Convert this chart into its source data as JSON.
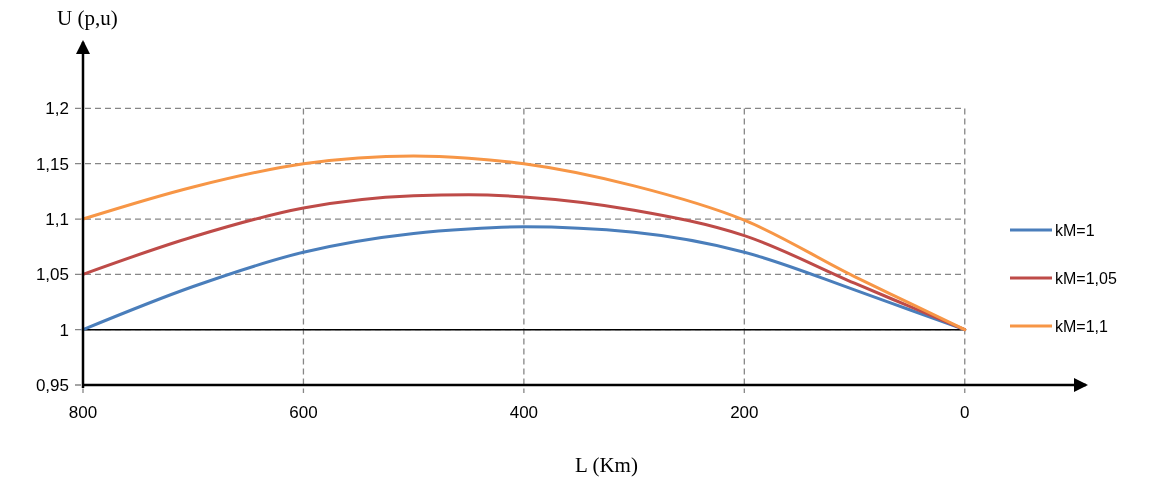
{
  "chart_data": {
    "type": "line",
    "xlabel": "L (Km)",
    "ylabel": "U (p,u)",
    "x": [
      800,
      700,
      600,
      500,
      450,
      400,
      300,
      200,
      100,
      50,
      0
    ],
    "xlim": [
      800,
      -110
    ],
    "xticks": [
      800,
      600,
      400,
      200,
      0
    ],
    "ylim": [
      0.95,
      1.26
    ],
    "yticks": [
      {
        "value": 0.95,
        "label": "0,95"
      },
      {
        "value": 1,
        "label": "1"
      },
      {
        "value": 1.05,
        "label": "1,05"
      },
      {
        "value": 1.1,
        "label": "1,1"
      },
      {
        "value": 1.15,
        "label": "1,15"
      },
      {
        "value": 1.2,
        "label": "1,2"
      }
    ],
    "series": [
      {
        "name": "kM=1",
        "color": "#4a7ebb",
        "values": [
          1.0,
          1.039,
          1.07,
          1.087,
          1.091,
          1.093,
          1.088,
          1.07,
          1.036,
          1.018,
          1.0
        ]
      },
      {
        "name": "kM=1,05",
        "color": "#be4b48",
        "values": [
          1.05,
          1.084,
          1.11,
          1.121,
          1.122,
          1.12,
          1.108,
          1.085,
          1.042,
          1.021,
          1.0
        ]
      },
      {
        "name": "kM=1,1",
        "color": "#f79646",
        "values": [
          1.1,
          1.129,
          1.15,
          1.157,
          1.155,
          1.15,
          1.13,
          1.099,
          1.048,
          1.024,
          1.0
        ]
      }
    ],
    "ref_lines": [
      {
        "axis": "y",
        "value": 1,
        "color": "#000000",
        "line_style": "solid"
      }
    ],
    "grid": true,
    "legend": "right",
    "line_style": "solid"
  }
}
